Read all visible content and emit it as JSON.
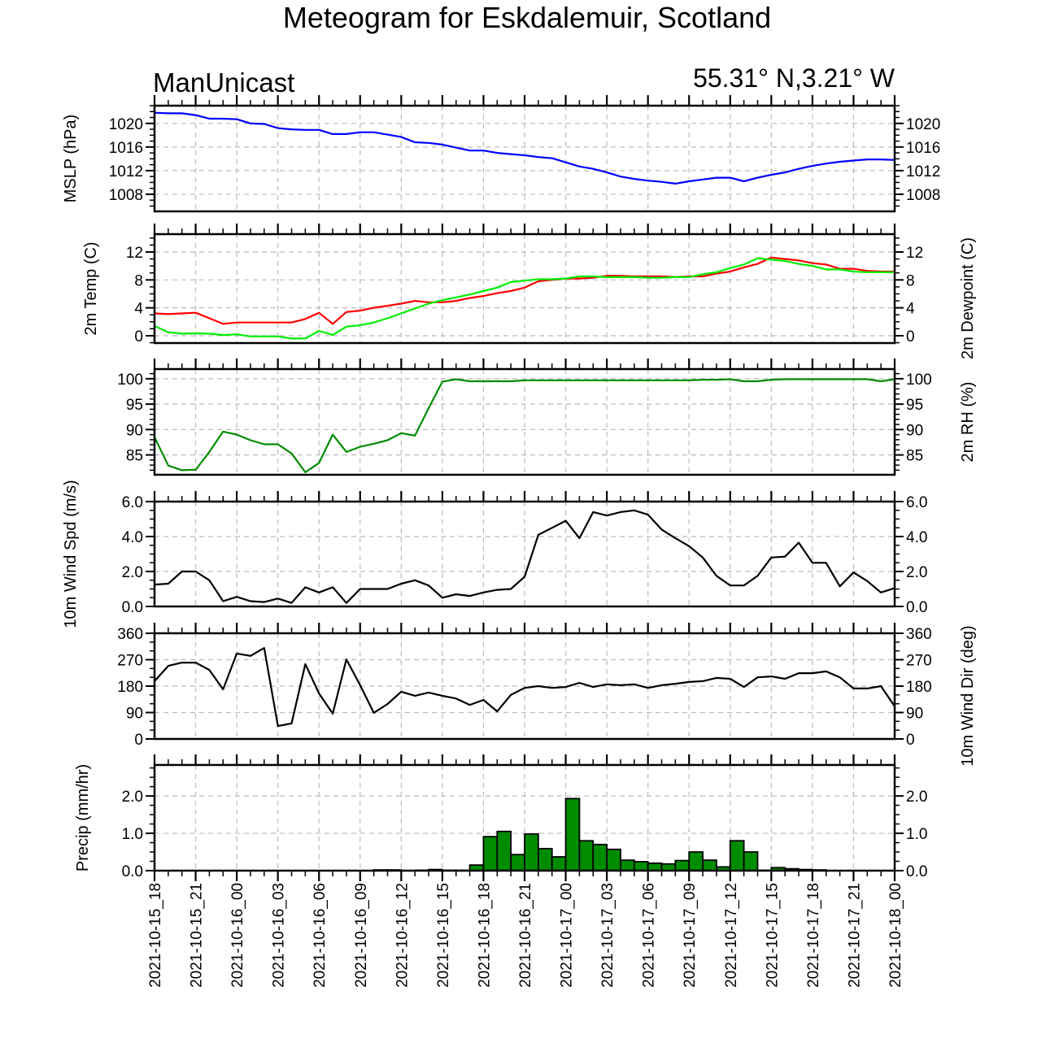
{
  "chart_data": {
    "type": "line",
    "title": "Meteogram for Eskdalemuir, Scotland",
    "subtitle_left": "ManUnicast",
    "subtitle_right": "55.31° N,3.21° W",
    "x_hours_range": [
      0,
      54
    ],
    "x_labels": [
      "2021-10-15_18",
      "2021-10-15_21",
      "2021-10-16_00",
      "2021-10-16_03",
      "2021-10-16_06",
      "2021-10-16_09",
      "2021-10-16_12",
      "2021-10-16_15",
      "2021-10-16_18",
      "2021-10-16_21",
      "2021-10-17_00",
      "2021-10-17_03",
      "2021-10-17_06",
      "2021-10-17_09",
      "2021-10-17_12",
      "2021-10-17_15",
      "2021-10-17_18",
      "2021-10-17_21",
      "2021-10-18_00"
    ],
    "grid": true,
    "panels": [
      {
        "type": "line",
        "ylabel_left": "MSLP (hPa)",
        "ylabel_right": "",
        "ylim": [
          1005.1,
          1023.0
        ],
        "yticks": [
          1008,
          1012,
          1016,
          1020
        ],
        "ytick_labels": [
          "1008",
          "1012",
          "1016",
          "1020"
        ],
        "yminor": 1,
        "right_tick_labels": true,
        "series": [
          {
            "name": "MSLP",
            "color": "#0000ff",
            "values": [
              1021.8,
              1021.7,
              1021.7,
              1021.4,
              1020.8,
              1020.8,
              1020.7,
              1020.0,
              1019.9,
              1019.2,
              1019.0,
              1018.9,
              1018.9,
              1018.2,
              1018.2,
              1018.5,
              1018.5,
              1018.1,
              1017.7,
              1016.8,
              1016.7,
              1016.4,
              1015.9,
              1015.4,
              1015.4,
              1015.0,
              1014.8,
              1014.6,
              1014.3,
              1014.1,
              1013.4,
              1012.7,
              1012.3,
              1011.7,
              1011.0,
              1010.6,
              1010.3,
              1010.1,
              1009.8,
              1010.2,
              1010.5,
              1010.8,
              1010.8,
              1010.2,
              1010.8,
              1011.3,
              1011.7,
              1012.3,
              1012.8,
              1013.2,
              1013.5,
              1013.7,
              1013.9,
              1013.9,
              1013.8
            ]
          }
        ]
      },
      {
        "type": "line",
        "ylabel_left": "2m Temp (C)",
        "ylabel_right": "2m Dewpoint (C)",
        "ylim": [
          -1.05,
          14.56
        ],
        "yticks": [
          0,
          4,
          8,
          12
        ],
        "ytick_labels": [
          "0",
          "4",
          "8",
          "12"
        ],
        "yminor": 1,
        "right_tick_labels": true,
        "series": [
          {
            "name": "2m Temp",
            "color": "#ff0000",
            "values": [
              3.2,
              3.1,
              3.2,
              3.3,
              2.5,
              1.7,
              1.9,
              1.9,
              1.9,
              1.9,
              1.9,
              2.4,
              3.3,
              1.7,
              3.4,
              3.6,
              4.0,
              4.3,
              4.6,
              5.0,
              4.8,
              4.8,
              5.0,
              5.4,
              5.7,
              6.1,
              6.4,
              6.9,
              7.8,
              8.0,
              8.2,
              8.2,
              8.3,
              8.6,
              8.6,
              8.5,
              8.5,
              8.5,
              8.4,
              8.5,
              8.5,
              8.9,
              9.2,
              9.8,
              10.3,
              11.2,
              11.0,
              10.8,
              10.4,
              10.2,
              9.6,
              9.6,
              9.3,
              9.2,
              9.2
            ]
          },
          {
            "name": "2m Dewpoint",
            "color": "#00ee00",
            "values": [
              1.4,
              0.5,
              0.3,
              0.35,
              0.3,
              0.1,
              0.2,
              -0.1,
              -0.1,
              -0.1,
              -0.4,
              -0.4,
              0.7,
              0.1,
              1.3,
              1.5,
              1.9,
              2.5,
              3.2,
              3.9,
              4.6,
              5.1,
              5.5,
              5.9,
              6.4,
              6.9,
              7.7,
              7.9,
              8.1,
              8.1,
              8.2,
              8.5,
              8.5,
              8.4,
              8.4,
              8.4,
              8.3,
              8.3,
              8.4,
              8.4,
              8.8,
              9.1,
              9.7,
              10.2,
              11.1,
              10.9,
              10.7,
              10.3,
              10.0,
              9.5,
              9.5,
              9.2,
              9.1,
              9.1,
              9.1
            ]
          }
        ]
      },
      {
        "type": "line",
        "ylabel_left": "",
        "ylabel_right": "2m RH (%)",
        "ylim": [
          81.1,
          101.9
        ],
        "yticks": [
          85,
          90,
          95,
          100
        ],
        "ytick_labels": [
          "85",
          "90",
          "95",
          "100"
        ],
        "yminor": 1,
        "right_tick_labels": true,
        "series": [
          {
            "name": "2m RH",
            "color": "#008c00",
            "values": [
              88.5,
              82.9,
              82.0,
              82.1,
              85.6,
              89.6,
              89.0,
              87.9,
              87.1,
              87.1,
              85.3,
              81.6,
              83.4,
              89.0,
              85.6,
              86.6,
              87.2,
              87.9,
              89.3,
              88.8,
              94.2,
              99.4,
              99.9,
              99.5,
              99.5,
              99.5,
              99.5,
              99.7,
              99.7,
              99.7,
              99.7,
              99.7,
              99.7,
              99.7,
              99.7,
              99.7,
              99.7,
              99.7,
              99.7,
              99.7,
              99.8,
              99.8,
              99.9,
              99.5,
              99.5,
              99.8,
              99.9,
              99.9,
              99.9,
              99.9,
              99.9,
              99.9,
              99.9,
              99.5,
              99.9
            ]
          }
        ]
      },
      {
        "type": "line",
        "ylabel_left": "10m Wind Spd (m/s)",
        "ylabel_right": "",
        "ylim": [
          0,
          6
        ],
        "yticks": [
          0,
          2,
          4,
          6
        ],
        "ytick_labels": [
          "0.0",
          "2.0",
          "4.0",
          "6.0"
        ],
        "yminor": 0.5,
        "right_tick_labels": true,
        "series": [
          {
            "name": "10m Wind Speed",
            "color": "#000000",
            "values": [
              1.25,
              1.3,
              2.0,
              2.0,
              1.5,
              0.3,
              0.55,
              0.3,
              0.25,
              0.45,
              0.2,
              1.1,
              0.8,
              1.1,
              0.2,
              1.0,
              1.0,
              1.0,
              1.3,
              1.5,
              1.2,
              0.5,
              0.7,
              0.6,
              0.8,
              0.95,
              1.0,
              1.7,
              4.1,
              4.5,
              4.9,
              3.9,
              5.4,
              5.2,
              5.4,
              5.5,
              5.25,
              4.4,
              3.9,
              3.45,
              2.8,
              1.75,
              1.2,
              1.2,
              1.75,
              2.8,
              2.85,
              3.65,
              2.5,
              2.5,
              1.15,
              1.95,
              1.45,
              0.8,
              1.05
            ]
          }
        ]
      },
      {
        "type": "line",
        "ylabel_left": "",
        "ylabel_right": "10m Wind Dir (deg)",
        "ylim": [
          0,
          360
        ],
        "yticks": [
          0,
          90,
          180,
          270,
          360
        ],
        "ytick_labels": [
          "0",
          "90",
          "180",
          "270",
          "360"
        ],
        "yminor": 30,
        "right_tick_labels": true,
        "series": [
          {
            "name": "10m Wind Direction",
            "color": "#000000",
            "values": [
              197,
              249,
              260,
              260,
              235,
              169,
              291,
              283,
              310,
              44,
              53,
              255,
              155,
              86,
              271,
              183,
              89,
              119,
              161,
              147,
              158,
              147,
              138,
              116,
              133,
              94,
              150,
              174,
              180,
              174,
              177,
              191,
              177,
              186,
              183,
              186,
              174,
              183,
              188,
              194,
              197,
              208,
              205,
              177,
              210,
              213,
              205,
              224,
              224,
              230,
              210,
              172,
              172,
              180,
              111
            ]
          }
        ]
      },
      {
        "type": "bar",
        "ylabel_left": "Precip (mm/hr)",
        "ylabel_right": "",
        "ylim": [
          0,
          2.83
        ],
        "yticks": [
          0,
          1,
          2
        ],
        "ytick_labels": [
          "0.0",
          "1.0",
          "2.0"
        ],
        "yminor": 0.25,
        "right_tick_labels": true,
        "series": [
          {
            "name": "Precip",
            "color": "#008c00",
            "values": [
              0,
              0,
              0,
              0,
              0,
              0,
              0,
              0,
              0,
              0,
              0,
              0,
              0,
              0,
              0,
              0,
              0.02,
              0.02,
              0,
              0.01,
              0.03,
              0.01,
              0.01,
              0.15,
              0.91,
              1.05,
              0.43,
              0.98,
              0.59,
              0.37,
              1.93,
              0.8,
              0.7,
              0.57,
              0.28,
              0.24,
              0.2,
              0.18,
              0.27,
              0.5,
              0.28,
              0.1,
              0.8,
              0.5,
              0.01,
              0.08,
              0.05,
              0.03,
              0.02,
              0,
              0,
              0,
              0,
              0
            ]
          }
        ]
      }
    ]
  }
}
